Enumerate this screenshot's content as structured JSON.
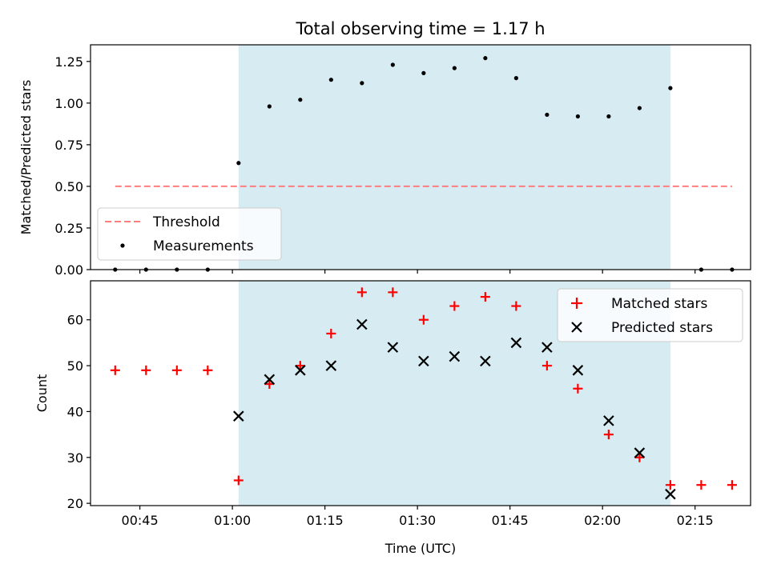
{
  "chart_data": [
    {
      "type": "scatter",
      "title": "Total observing time = 1.17 h",
      "ylabel": "Matched/Predicted stars",
      "xlabel": "",
      "xlim": [
        "00:37",
        "02:24"
      ],
      "ylim": [
        0,
        1.35
      ],
      "yticks": [
        "0.00",
        "0.25",
        "0.50",
        "0.75",
        "1.00",
        "1.25"
      ],
      "grid": false,
      "legend_position": "lower-left",
      "shaded_span": {
        "from": "01:01",
        "to": "02:11",
        "color": "#add8e6"
      },
      "threshold": {
        "name": "Threshold",
        "value": 0.5,
        "from": "00:41",
        "to": "02:21",
        "color": "#ff7f7f"
      },
      "series": [
        {
          "name": "Measurements",
          "color": "#000000",
          "x": [
            "00:41",
            "00:46",
            "00:51",
            "00:56",
            "01:01",
            "01:06",
            "01:11",
            "01:16",
            "01:21",
            "01:26",
            "01:31",
            "01:36",
            "01:41",
            "01:46",
            "01:51",
            "01:56",
            "02:01",
            "02:06",
            "02:11",
            "02:16",
            "02:21"
          ],
          "y": [
            0,
            0,
            0,
            0,
            0.64,
            0.98,
            1.02,
            1.14,
            1.12,
            1.23,
            1.18,
            1.21,
            1.27,
            1.15,
            0.93,
            0.92,
            0.92,
            0.97,
            1.09,
            0,
            0
          ]
        }
      ]
    },
    {
      "type": "scatter",
      "title": "",
      "ylabel": "Count",
      "xlabel": "Time (UTC)",
      "xlim": [
        "00:37",
        "02:24"
      ],
      "ylim": [
        19.5,
        68.5
      ],
      "xticks": [
        "00:45",
        "01:00",
        "01:15",
        "01:30",
        "01:45",
        "02:00",
        "02:15"
      ],
      "yticks": [
        "20",
        "30",
        "40",
        "50",
        "60"
      ],
      "grid": false,
      "legend_position": "upper-right",
      "shaded_span": {
        "from": "01:01",
        "to": "02:11",
        "color": "#add8e6"
      },
      "series": [
        {
          "name": "Matched stars",
          "marker": "plus",
          "color": "#ff0000",
          "x": [
            "00:41",
            "00:46",
            "00:51",
            "00:56",
            "01:01",
            "01:06",
            "01:11",
            "01:16",
            "01:21",
            "01:26",
            "01:31",
            "01:36",
            "01:41",
            "01:46",
            "01:51",
            "01:56",
            "02:01",
            "02:06",
            "02:11",
            "02:16",
            "02:21"
          ],
          "y": [
            49,
            49,
            49,
            49,
            25,
            46,
            50,
            57,
            66,
            66,
            60,
            63,
            65,
            63,
            50,
            45,
            35,
            30,
            24,
            24,
            24
          ]
        },
        {
          "name": "Predicted stars",
          "marker": "x",
          "color": "#000000",
          "x": [
            "01:01",
            "01:06",
            "01:11",
            "01:16",
            "01:21",
            "01:26",
            "01:31",
            "01:36",
            "01:41",
            "01:46",
            "01:51",
            "01:56",
            "02:01",
            "02:06",
            "02:11"
          ],
          "y": [
            39,
            47,
            49,
            50,
            59,
            54,
            51,
            52,
            51,
            55,
            54,
            49,
            38,
            31,
            22
          ]
        }
      ]
    }
  ]
}
